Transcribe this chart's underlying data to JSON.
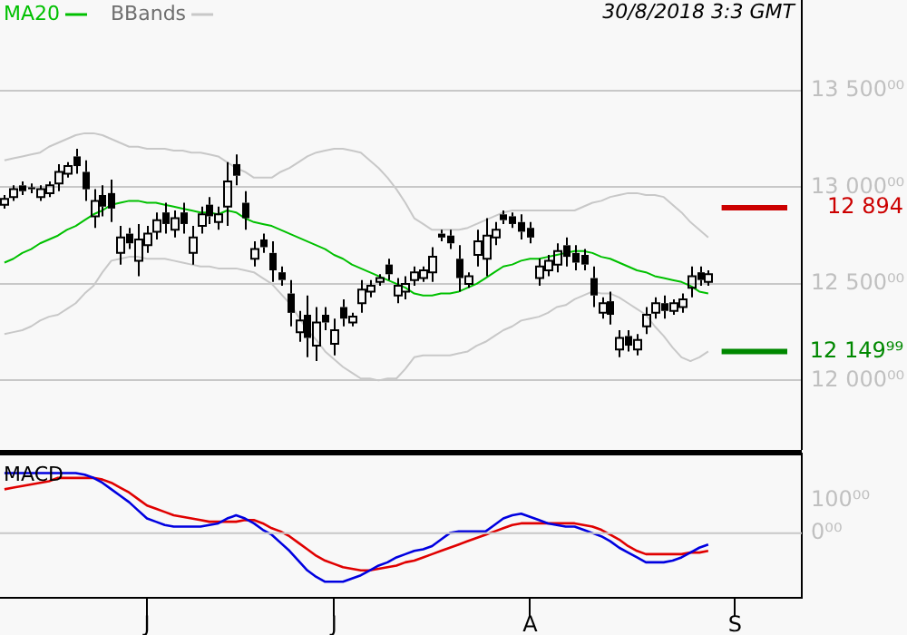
{
  "chart_data": [
    {
      "type": "candlestick",
      "color": "#000000",
      "categories": [
        null,
        null,
        null,
        null,
        null,
        null,
        null,
        null,
        null,
        null,
        null,
        null,
        null,
        null,
        null,
        null,
        null,
        null,
        null,
        null,
        null,
        null,
        null,
        null,
        null,
        null,
        null,
        null,
        null,
        null,
        null,
        null,
        null,
        null,
        null,
        null,
        null,
        null,
        null,
        null,
        null,
        null,
        null,
        null,
        null,
        null,
        null,
        null,
        null,
        null,
        null,
        null,
        null,
        null,
        null,
        null,
        null,
        null,
        null,
        null,
        null,
        null,
        null,
        null,
        null,
        null,
        null,
        null,
        null,
        null,
        null,
        null,
        null,
        null,
        null,
        null,
        null,
        null,
        null,
        null,
        null,
        null,
        null,
        null,
        null,
        null,
        null,
        null,
        null,
        null
      ],
      "ohlc": [
        [
          12910,
          12960,
          12890,
          12940
        ],
        [
          12950,
          13010,
          12930,
          12990
        ],
        [
          13010,
          13030,
          12960,
          12980
        ],
        [
          13000,
          13020,
          12970,
          12990
        ],
        [
          12950,
          13010,
          12930,
          12990
        ],
        [
          12970,
          13030,
          12950,
          13010
        ],
        [
          13020,
          13120,
          12980,
          13080
        ],
        [
          13070,
          13130,
          13050,
          13110
        ],
        [
          13160,
          13200,
          13070,
          13110
        ],
        [
          13080,
          13140,
          12930,
          12990
        ],
        [
          12850,
          12990,
          12790,
          12930
        ],
        [
          12960,
          13010,
          12850,
          12900
        ],
        [
          12970,
          13040,
          12820,
          12890
        ],
        [
          12660,
          12800,
          12600,
          12740
        ],
        [
          12760,
          12790,
          12680,
          12710
        ],
        [
          12620,
          12810,
          12540,
          12730
        ],
        [
          12700,
          12800,
          12660,
          12760
        ],
        [
          12770,
          12870,
          12730,
          12830
        ],
        [
          12870,
          12920,
          12760,
          12810
        ],
        [
          12780,
          12880,
          12740,
          12840
        ],
        [
          12870,
          12920,
          12760,
          12810
        ],
        [
          12660,
          12800,
          12600,
          12740
        ],
        [
          12800,
          12900,
          12760,
          12860
        ],
        [
          12910,
          12950,
          12810,
          12850
        ],
        [
          12820,
          12900,
          12780,
          12860
        ],
        [
          12900,
          13130,
          12800,
          13030
        ],
        [
          13120,
          13170,
          13010,
          13060
        ],
        [
          12920,
          12980,
          12780,
          12840
        ],
        [
          12630,
          12720,
          12590,
          12680
        ],
        [
          12730,
          12760,
          12660,
          12690
        ],
        [
          12660,
          12720,
          12510,
          12570
        ],
        [
          12560,
          12590,
          12490,
          12520
        ],
        [
          12450,
          12520,
          12280,
          12350
        ],
        [
          12250,
          12360,
          12200,
          12310
        ],
        [
          12340,
          12440,
          12120,
          12220
        ],
        [
          12180,
          12380,
          12100,
          12300
        ],
        [
          12340,
          12380,
          12260,
          12300
        ],
        [
          12190,
          12320,
          12130,
          12260
        ],
        [
          12380,
          12420,
          12280,
          12320
        ],
        [
          12300,
          12350,
          12280,
          12330
        ],
        [
          12400,
          12520,
          12350,
          12470
        ],
        [
          12460,
          12520,
          12430,
          12490
        ],
        [
          12510,
          12550,
          12490,
          12530
        ],
        [
          12600,
          12630,
          12520,
          12550
        ],
        [
          12440,
          12530,
          12400,
          12490
        ],
        [
          12460,
          12540,
          12420,
          12500
        ],
        [
          12520,
          12590,
          12490,
          12560
        ],
        [
          12530,
          12590,
          12510,
          12570
        ],
        [
          12560,
          12690,
          12510,
          12640
        ],
        [
          12760,
          12780,
          12720,
          12740
        ],
        [
          12750,
          12780,
          12680,
          12710
        ],
        [
          12630,
          12700,
          12460,
          12530
        ],
        [
          12500,
          12560,
          12480,
          12540
        ],
        [
          12650,
          12780,
          12590,
          12720
        ],
        [
          12630,
          12840,
          12540,
          12750
        ],
        [
          12740,
          12820,
          12700,
          12780
        ],
        [
          12860,
          12880,
          12810,
          12830
        ],
        [
          12850,
          12870,
          12790,
          12810
        ],
        [
          12820,
          12860,
          12730,
          12770
        ],
        [
          12790,
          12820,
          12710,
          12740
        ],
        [
          12530,
          12630,
          12490,
          12590
        ],
        [
          12570,
          12650,
          12540,
          12620
        ],
        [
          12600,
          12710,
          12560,
          12670
        ],
        [
          12700,
          12740,
          12590,
          12640
        ],
        [
          12660,
          12700,
          12570,
          12610
        ],
        [
          12650,
          12680,
          12570,
          12600
        ],
        [
          12530,
          12590,
          12380,
          12440
        ],
        [
          12350,
          12430,
          12320,
          12400
        ],
        [
          12410,
          12460,
          12290,
          12340
        ],
        [
          12160,
          12260,
          12120,
          12220
        ],
        [
          12230,
          12260,
          12150,
          12180
        ],
        [
          12160,
          12240,
          12130,
          12210
        ],
        [
          12280,
          12380,
          12240,
          12340
        ],
        [
          12350,
          12430,
          12320,
          12400
        ],
        [
          12400,
          12440,
          12320,
          12360
        ],
        [
          12360,
          12420,
          12340,
          12400
        ],
        [
          12380,
          12450,
          12350,
          12420
        ],
        [
          12480,
          12590,
          12430,
          12540
        ],
        [
          12560,
          12590,
          12490,
          12520
        ],
        [
          12510,
          12570,
          12490,
          12550
        ],
        null,
        null,
        null,
        null,
        null,
        null,
        null,
        null,
        null,
        null
      ],
      "series": [
        {
          "name": "MA20",
          "type": "line",
          "color": "#00c000",
          "values": [
            12610,
            12630,
            12660,
            12680,
            12710,
            12730,
            12750,
            12780,
            12800,
            12830,
            12860,
            12880,
            12910,
            12920,
            12930,
            12930,
            12920,
            12920,
            12910,
            12900,
            12890,
            12880,
            12870,
            12870,
            12860,
            12880,
            12870,
            12840,
            12820,
            12810,
            12800,
            12780,
            12760,
            12740,
            12720,
            12700,
            12680,
            12650,
            12630,
            12600,
            12580,
            12560,
            12540,
            12520,
            12500,
            12480,
            12450,
            12440,
            12440,
            12450,
            12450,
            12460,
            12480,
            12500,
            12530,
            12560,
            12590,
            12600,
            12620,
            12630,
            12630,
            12640,
            12650,
            12660,
            12670,
            12670,
            12660,
            12640,
            12630,
            12610,
            12590,
            12570,
            12560,
            12540,
            12530,
            12520,
            12510,
            12490,
            12460,
            12450,
            null,
            null,
            null,
            null,
            null,
            null,
            null,
            null,
            null,
            null
          ]
        },
        {
          "name": "BBands",
          "type": "line",
          "color": "#c8c8c8",
          "values": [
            13140,
            13150,
            13160,
            13170,
            13180,
            13210,
            13230,
            13250,
            13270,
            13280,
            13280,
            13270,
            13250,
            13230,
            13210,
            13210,
            13200,
            13200,
            13200,
            13190,
            13190,
            13180,
            13180,
            13170,
            13160,
            13130,
            13100,
            13080,
            13050,
            13050,
            13050,
            13080,
            13100,
            13130,
            13160,
            13180,
            13190,
            13200,
            13200,
            13190,
            13180,
            13140,
            13100,
            13050,
            12990,
            12920,
            12840,
            12810,
            12780,
            12780,
            12780,
            12780,
            12790,
            12810,
            12830,
            12850,
            12870,
            12880,
            12880,
            12880,
            12880,
            12880,
            12880,
            12880,
            12880,
            12900,
            12920,
            12930,
            12950,
            12960,
            12970,
            12970,
            12960,
            12960,
            12950,
            12910,
            12870,
            12820,
            12780,
            12740,
            null,
            null,
            null,
            null,
            null,
            null,
            null,
            null,
            null,
            null
          ]
        },
        {
          "type": "line",
          "color": "#c8c8c8",
          "values": [
            12240,
            12250,
            12260,
            12280,
            12310,
            12330,
            12340,
            12370,
            12400,
            12450,
            12490,
            12560,
            12620,
            12630,
            12640,
            12640,
            12630,
            12630,
            12630,
            12620,
            12610,
            12600,
            12590,
            12590,
            12580,
            12580,
            12580,
            12570,
            12560,
            12530,
            12500,
            12450,
            12400,
            12330,
            12260,
            12210,
            12150,
            12110,
            12070,
            12040,
            12010,
            12010,
            12000,
            12010,
            12010,
            12060,
            12120,
            12130,
            12130,
            12130,
            12130,
            12140,
            12150,
            12180,
            12200,
            12230,
            12260,
            12280,
            12310,
            12320,
            12330,
            12350,
            12380,
            12390,
            12420,
            12440,
            12460,
            12450,
            12450,
            12430,
            12400,
            12370,
            12340,
            12280,
            12230,
            12170,
            12120,
            12100,
            12120,
            12150,
            null,
            null,
            null,
            null,
            null,
            null,
            null,
            null,
            null,
            null
          ]
        }
      ],
      "ylim": [
        11640,
        13970
      ],
      "yticks": [
        {
          "value": 12000,
          "label": "12 000⁰⁰"
        },
        {
          "value": 12500,
          "label": "12 500⁰⁰"
        },
        {
          "value": 13000,
          "label": "13 000⁰⁰"
        },
        {
          "value": 13500,
          "label": "13 500⁰⁰"
        }
      ],
      "ref_lines": [
        {
          "axis": "y",
          "value": 12894,
          "label": "12 894",
          "color": "#cc0000"
        },
        {
          "axis": "y",
          "value": 12149.99,
          "label": "12 149⁹⁹",
          "color": "#008800"
        }
      ],
      "grid": "y",
      "legend": "top left",
      "tick_labels": "y",
      "annotations": [
        "30/8/2018 3:3 GMT"
      ]
    },
    {
      "type": "line",
      "title": "MACD",
      "categories": [
        null,
        null,
        null,
        null,
        null,
        null,
        null,
        null,
        null,
        null,
        null,
        null,
        null,
        null,
        null,
        null,
        "J",
        null,
        null,
        null,
        null,
        null,
        null,
        null,
        null,
        null,
        null,
        null,
        null,
        null,
        null,
        null,
        null,
        null,
        null,
        null,
        null,
        "J",
        null,
        null,
        null,
        null,
        null,
        null,
        null,
        null,
        null,
        null,
        null,
        null,
        null,
        null,
        null,
        null,
        null,
        null,
        null,
        null,
        null,
        "A",
        null,
        null,
        null,
        null,
        null,
        null,
        null,
        null,
        null,
        null,
        null,
        null,
        null,
        null,
        null,
        null,
        null,
        null,
        null,
        null,
        null,
        null,
        "S",
        null,
        null,
        null,
        null,
        null,
        null,
        null
      ],
      "series": [
        {
          "color": "#0000e0",
          "values": [
            185,
            185,
            185,
            185,
            185,
            185,
            185,
            185,
            185,
            180,
            170,
            155,
            135,
            115,
            95,
            70,
            45,
            35,
            25,
            20,
            20,
            20,
            20,
            25,
            30,
            45,
            55,
            45,
            30,
            10,
            -5,
            -30,
            -55,
            -85,
            -115,
            -135,
            -150,
            -150,
            -150,
            -140,
            -130,
            -115,
            -100,
            -90,
            -75,
            -65,
            -55,
            -50,
            -40,
            -20,
            0,
            5,
            5,
            5,
            5,
            25,
            45,
            55,
            60,
            50,
            40,
            30,
            25,
            20,
            20,
            10,
            0,
            -10,
            -25,
            -45,
            -60,
            -75,
            -90,
            -90,
            -90,
            -85,
            -75,
            -60,
            -45,
            -35,
            null,
            null,
            null,
            null,
            null,
            null,
            null,
            null,
            null,
            null
          ]
        },
        {
          "color": "#e00000",
          "values": [
            135,
            140,
            145,
            150,
            155,
            160,
            170,
            170,
            170,
            170,
            170,
            165,
            155,
            140,
            125,
            105,
            85,
            75,
            65,
            55,
            50,
            45,
            40,
            35,
            35,
            35,
            35,
            40,
            40,
            30,
            15,
            5,
            -10,
            -30,
            -50,
            -70,
            -85,
            -95,
            -105,
            -110,
            -115,
            -115,
            -110,
            -105,
            -100,
            -90,
            -85,
            -75,
            -65,
            -55,
            -45,
            -35,
            -25,
            -15,
            -5,
            5,
            15,
            25,
            30,
            30,
            30,
            30,
            30,
            30,
            30,
            25,
            20,
            10,
            -5,
            -20,
            -40,
            -55,
            -65,
            -65,
            -65,
            -65,
            -65,
            -60,
            -60,
            -55,
            null,
            null,
            null,
            null,
            null,
            null,
            null,
            null,
            null,
            null
          ]
        }
      ],
      "ylim": [
        -200,
        245
      ],
      "yticks": [
        {
          "value": 0,
          "label": "0⁰⁰"
        },
        {
          "value": 100,
          "label": "100⁰⁰"
        }
      ],
      "ref_lines": [
        {
          "axis": "y",
          "value": 0,
          "color": "#c8c8c8"
        }
      ]
    }
  ]
}
